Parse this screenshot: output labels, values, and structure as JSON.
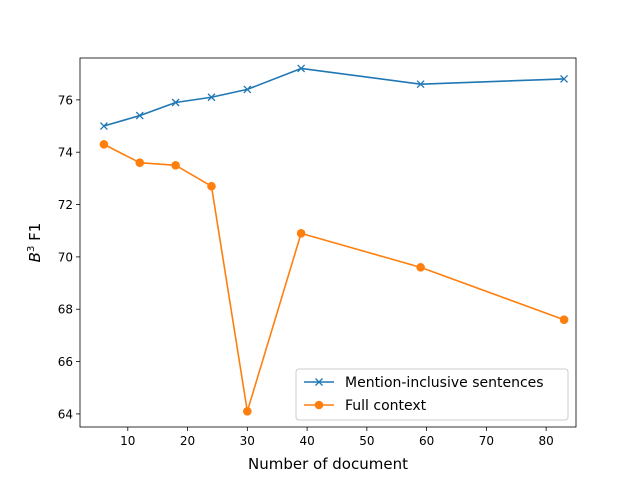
{
  "chart_data": {
    "type": "line",
    "xlabel": "Number of document",
    "ylabel": {
      "base": "B",
      "sup": "3",
      "rest": " F1"
    },
    "xlim": [
      2,
      85
    ],
    "ylim": [
      63.5,
      77.6
    ],
    "xticks": [
      10,
      20,
      30,
      40,
      50,
      60,
      70,
      80
    ],
    "yticks": [
      64,
      66,
      68,
      70,
      72,
      74,
      76
    ],
    "series": [
      {
        "name": "Mention-inclusive sentences",
        "color": "#1f77b4",
        "marker": "x",
        "x": [
          6,
          12,
          18,
          24,
          30,
          39,
          59,
          83
        ],
        "y": [
          75.0,
          75.4,
          75.9,
          76.1,
          76.4,
          77.2,
          76.6,
          76.8
        ]
      },
      {
        "name": "Full context",
        "color": "#ff7f0e",
        "marker": "o",
        "x": [
          6,
          12,
          18,
          24,
          30,
          39,
          59,
          83
        ],
        "y": [
          74.3,
          73.6,
          73.5,
          72.7,
          64.1,
          70.9,
          69.6,
          67.6
        ]
      }
    ],
    "legend_position": "lower-right",
    "grid": false
  }
}
